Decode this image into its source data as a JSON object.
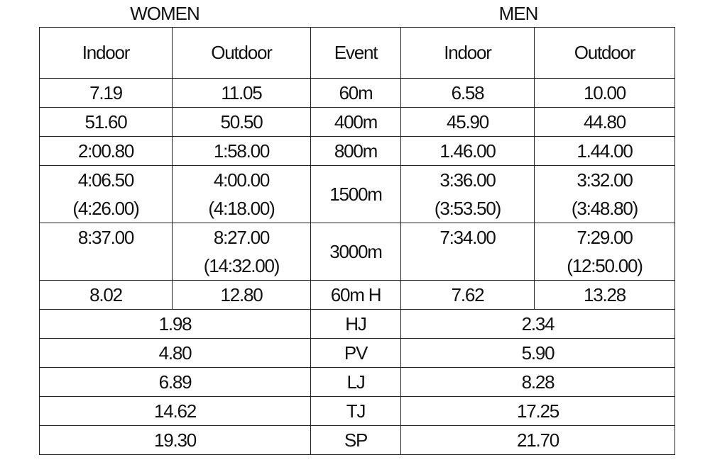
{
  "header": {
    "women": "WOMEN",
    "men": "MEN"
  },
  "table": {
    "columns": [
      "Indoor",
      "Outdoor",
      "Event",
      "Indoor",
      "Outdoor"
    ],
    "rows": [
      {
        "event": "60m",
        "women": [
          [
            "7.19"
          ],
          [
            "11.05"
          ]
        ],
        "men": [
          [
            "6.58"
          ],
          [
            "10.00"
          ]
        ]
      },
      {
        "event": "400m",
        "women": [
          [
            "51.60"
          ],
          [
            "50.50"
          ]
        ],
        "men": [
          [
            "45.90"
          ],
          [
            "44.80"
          ]
        ]
      },
      {
        "event": "800m",
        "women": [
          [
            "2:00.80"
          ],
          [
            "1:58.00"
          ]
        ],
        "men": [
          [
            "1.46.00"
          ],
          [
            "1.44.00"
          ]
        ]
      },
      {
        "event": "1500m",
        "women": [
          [
            "4:06.50",
            "(4:26.00)"
          ],
          [
            "4:00.00",
            "(4:18.00)"
          ]
        ],
        "men": [
          [
            "3:36.00",
            "(3:53.50)"
          ],
          [
            "3:32.00",
            "(3:48.80)"
          ]
        ]
      },
      {
        "event": "3000m",
        "women": [
          [
            "8:37.00"
          ],
          [
            "8:27.00",
            "(14:32.00)"
          ]
        ],
        "men": [
          [
            "7:34.00"
          ],
          [
            "7:29.00",
            "(12:50.00)"
          ]
        ]
      },
      {
        "event": "60m H",
        "women": [
          [
            "8.02"
          ],
          [
            "12.80"
          ]
        ],
        "men": [
          [
            "7.62"
          ],
          [
            "13.28"
          ]
        ]
      },
      {
        "event": "HJ",
        "women": [
          [
            "1.98"
          ]
        ],
        "men": [
          [
            "2.34"
          ]
        ]
      },
      {
        "event": "PV",
        "women": [
          [
            "4.80"
          ]
        ],
        "men": [
          [
            "5.90"
          ]
        ]
      },
      {
        "event": "LJ",
        "women": [
          [
            "6.89"
          ]
        ],
        "men": [
          [
            "8.28"
          ]
        ]
      },
      {
        "event": "TJ",
        "women": [
          [
            "14.62"
          ]
        ],
        "men": [
          [
            "17.25"
          ]
        ]
      },
      {
        "event": "SP",
        "women": [
          [
            "19.30"
          ]
        ],
        "men": [
          [
            "21.70"
          ]
        ]
      }
    ]
  }
}
